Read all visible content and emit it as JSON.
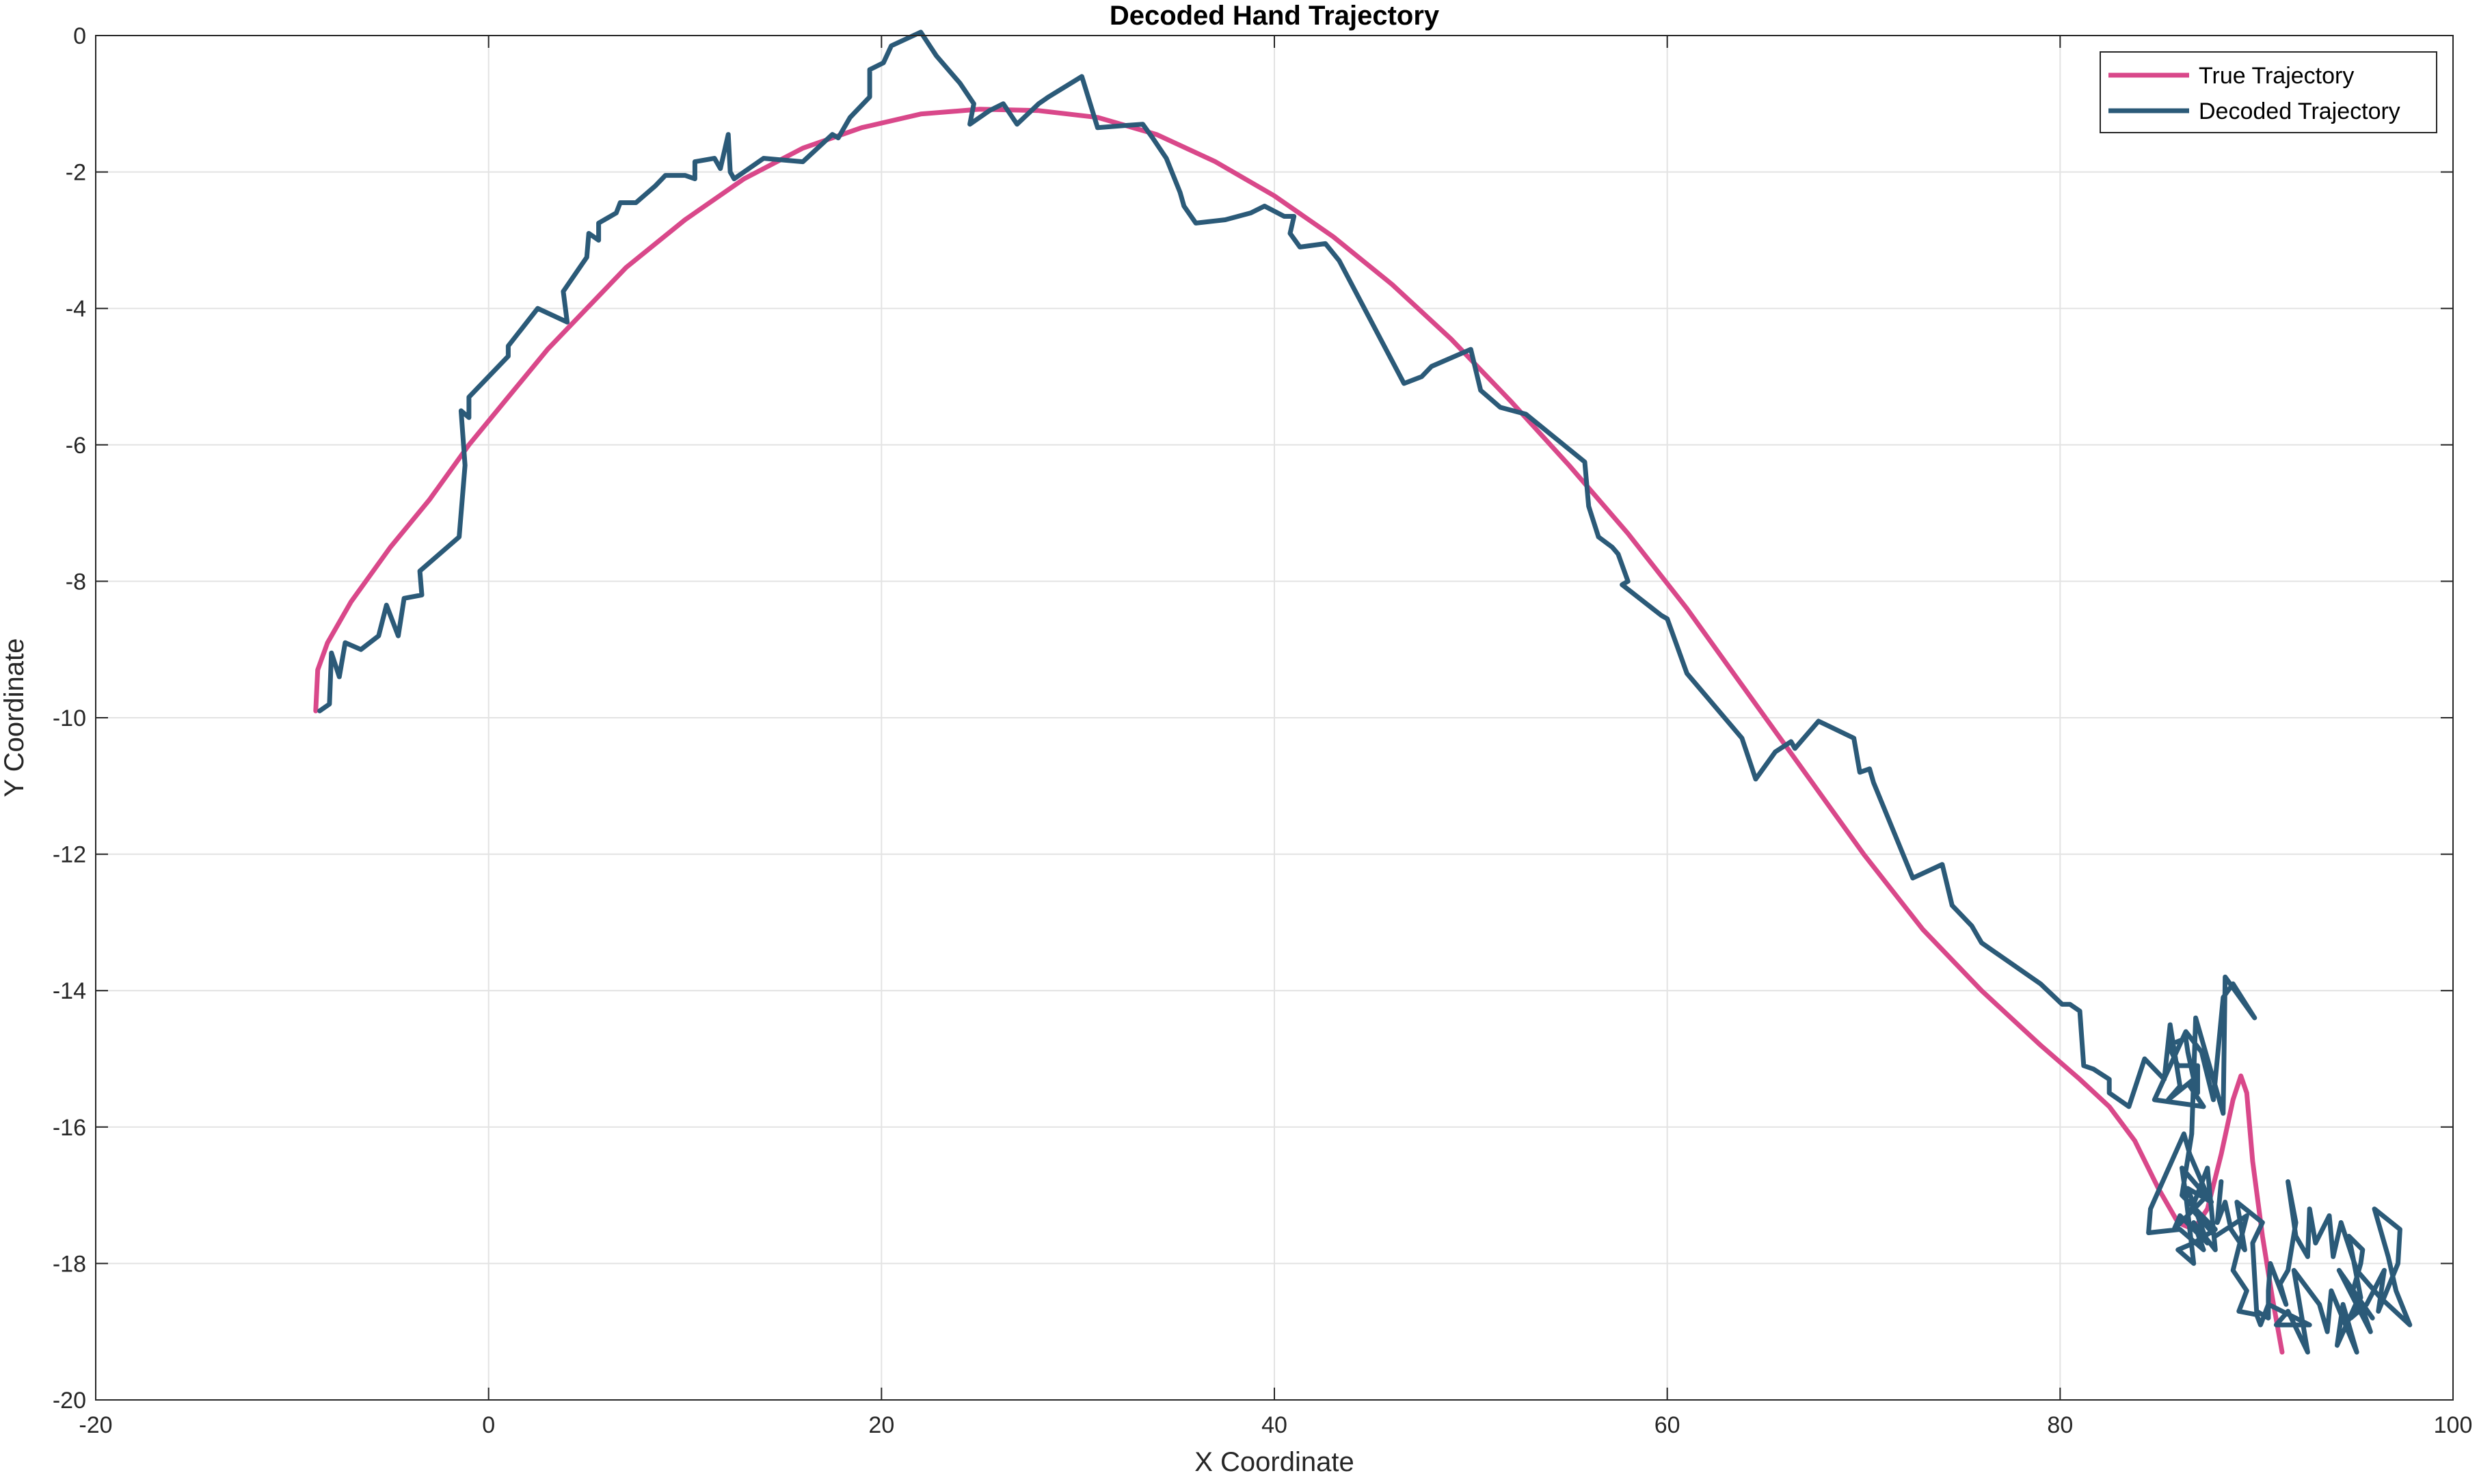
{
  "chart_data": {
    "type": "line",
    "title": "Decoded Hand Trajectory",
    "xlabel": "X Coordinate",
    "ylabel": "Y Coordinate",
    "xlim": [
      -20,
      100
    ],
    "ylim": [
      -20,
      0
    ],
    "xticks": [
      -20,
      0,
      20,
      40,
      60,
      80,
      100
    ],
    "yticks": [
      0,
      -2,
      -4,
      -6,
      -8,
      -10,
      -12,
      -14,
      -16,
      -18,
      -20
    ],
    "grid": true,
    "legend": "top-right",
    "series": [
      {
        "name": "True Trajectory",
        "color": "#d9488a",
        "points": [
          [
            -8.8,
            -9.9
          ],
          [
            -8.7,
            -9.3
          ],
          [
            -8.2,
            -8.9
          ],
          [
            -7.0,
            -8.3
          ],
          [
            -5.0,
            -7.5
          ],
          [
            -3.0,
            -6.8
          ],
          [
            -1.0,
            -6.0
          ],
          [
            1.0,
            -5.3
          ],
          [
            3.0,
            -4.6
          ],
          [
            5.0,
            -4.0
          ],
          [
            7.0,
            -3.4
          ],
          [
            10.0,
            -2.7
          ],
          [
            13.0,
            -2.1
          ],
          [
            16.0,
            -1.65
          ],
          [
            19.0,
            -1.35
          ],
          [
            22.0,
            -1.15
          ],
          [
            25.0,
            -1.08
          ],
          [
            28.0,
            -1.1
          ],
          [
            31.0,
            -1.2
          ],
          [
            34.0,
            -1.45
          ],
          [
            37.0,
            -1.85
          ],
          [
            40.0,
            -2.35
          ],
          [
            43.0,
            -2.95
          ],
          [
            46.0,
            -3.65
          ],
          [
            49.0,
            -4.45
          ],
          [
            52.0,
            -5.35
          ],
          [
            55.0,
            -6.3
          ],
          [
            58.0,
            -7.3
          ],
          [
            61.0,
            -8.4
          ],
          [
            64.0,
            -9.6
          ],
          [
            67.0,
            -10.8
          ],
          [
            70.0,
            -12.0
          ],
          [
            73.0,
            -13.1
          ],
          [
            76.0,
            -14.0
          ],
          [
            79.0,
            -14.8
          ],
          [
            81.0,
            -15.3
          ],
          [
            82.5,
            -15.7
          ],
          [
            83.8,
            -16.2
          ],
          [
            85.0,
            -16.9
          ],
          [
            86.0,
            -17.4
          ],
          [
            86.8,
            -17.5
          ],
          [
            87.5,
            -17.2
          ],
          [
            88.2,
            -16.4
          ],
          [
            88.8,
            -15.6
          ],
          [
            89.2,
            -15.25
          ],
          [
            89.5,
            -15.5
          ],
          [
            89.8,
            -16.5
          ],
          [
            90.3,
            -17.6
          ],
          [
            90.8,
            -18.5
          ],
          [
            91.3,
            -19.3
          ]
        ]
      },
      {
        "name": "Decoded Trajectory",
        "color": "#2b5a78",
        "points": [
          [
            -8.6,
            -9.9
          ],
          [
            -8.1,
            -9.8
          ],
          [
            -8.0,
            -9.05
          ],
          [
            -7.6,
            -9.4
          ],
          [
            -7.3,
            -8.9
          ],
          [
            -6.5,
            -9.0
          ],
          [
            -5.6,
            -8.8
          ],
          [
            -5.2,
            -8.35
          ],
          [
            -4.6,
            -8.8
          ],
          [
            -4.3,
            -8.25
          ],
          [
            -3.4,
            -8.2
          ],
          [
            -3.5,
            -7.85
          ],
          [
            -1.5,
            -7.35
          ],
          [
            -1.2,
            -6.3
          ],
          [
            -1.4,
            -5.5
          ],
          [
            -1.0,
            -5.6
          ],
          [
            -1.0,
            -5.3
          ],
          [
            1.0,
            -4.7
          ],
          [
            1.0,
            -4.55
          ],
          [
            2.5,
            -4.0
          ],
          [
            4.0,
            -4.2
          ],
          [
            3.8,
            -3.75
          ],
          [
            5.0,
            -3.25
          ],
          [
            5.1,
            -2.9
          ],
          [
            5.6,
            -3.0
          ],
          [
            5.6,
            -2.75
          ],
          [
            6.5,
            -2.6
          ],
          [
            6.7,
            -2.45
          ],
          [
            7.5,
            -2.45
          ],
          [
            8.5,
            -2.2
          ],
          [
            9.0,
            -2.05
          ],
          [
            10.0,
            -2.05
          ],
          [
            10.5,
            -2.1
          ],
          [
            10.5,
            -1.85
          ],
          [
            11.5,
            -1.8
          ],
          [
            11.8,
            -1.95
          ],
          [
            12.2,
            -1.45
          ],
          [
            12.3,
            -2.0
          ],
          [
            12.5,
            -2.1
          ],
          [
            14.0,
            -1.8
          ],
          [
            16.0,
            -1.85
          ],
          [
            17.5,
            -1.45
          ],
          [
            17.8,
            -1.5
          ],
          [
            18.4,
            -1.2
          ],
          [
            19.4,
            -0.9
          ],
          [
            19.4,
            -0.5
          ],
          [
            20.1,
            -0.4
          ],
          [
            20.5,
            -0.15
          ],
          [
            22.0,
            0.05
          ],
          [
            22.8,
            -0.3
          ],
          [
            24.0,
            -0.7
          ],
          [
            24.7,
            -1.0
          ],
          [
            24.5,
            -1.3
          ],
          [
            25.5,
            -1.1
          ],
          [
            26.2,
            -1.0
          ],
          [
            26.9,
            -1.3
          ],
          [
            28.0,
            -1.0
          ],
          [
            28.5,
            -0.9
          ],
          [
            30.2,
            -0.6
          ],
          [
            31.0,
            -1.35
          ],
          [
            33.3,
            -1.3
          ],
          [
            33.8,
            -1.5
          ],
          [
            34.5,
            -1.8
          ],
          [
            35.2,
            -2.3
          ],
          [
            35.4,
            -2.5
          ],
          [
            36.0,
            -2.75
          ],
          [
            37.5,
            -2.7
          ],
          [
            38.8,
            -2.6
          ],
          [
            39.5,
            -2.5
          ],
          [
            40.5,
            -2.65
          ],
          [
            41.0,
            -2.65
          ],
          [
            40.8,
            -2.9
          ],
          [
            41.3,
            -3.1
          ],
          [
            42.6,
            -3.05
          ],
          [
            43.3,
            -3.3
          ],
          [
            46.6,
            -5.1
          ],
          [
            47.5,
            -5.0
          ],
          [
            48.0,
            -4.85
          ],
          [
            50.0,
            -4.6
          ],
          [
            50.5,
            -5.2
          ],
          [
            51.5,
            -5.45
          ],
          [
            52.8,
            -5.55
          ],
          [
            55.8,
            -6.25
          ],
          [
            56.0,
            -6.9
          ],
          [
            56.5,
            -7.35
          ],
          [
            57.2,
            -7.5
          ],
          [
            57.5,
            -7.6
          ],
          [
            58.0,
            -8.0
          ],
          [
            57.7,
            -8.05
          ],
          [
            59.7,
            -8.5
          ],
          [
            60.0,
            -8.55
          ],
          [
            61.0,
            -9.35
          ],
          [
            63.8,
            -10.3
          ],
          [
            64.5,
            -10.9
          ],
          [
            65.5,
            -10.5
          ],
          [
            66.3,
            -10.35
          ],
          [
            66.5,
            -10.45
          ],
          [
            67.7,
            -10.05
          ],
          [
            69.5,
            -10.3
          ],
          [
            69.8,
            -10.8
          ],
          [
            70.3,
            -10.75
          ],
          [
            70.5,
            -10.95
          ],
          [
            72.5,
            -12.35
          ],
          [
            74.0,
            -12.15
          ],
          [
            74.5,
            -12.75
          ],
          [
            75.5,
            -13.05
          ],
          [
            76.0,
            -13.3
          ],
          [
            77.5,
            -13.6
          ],
          [
            79.0,
            -13.9
          ],
          [
            80.1,
            -14.2
          ],
          [
            80.5,
            -14.2
          ],
          [
            81.0,
            -14.3
          ],
          [
            81.2,
            -15.1
          ],
          [
            81.7,
            -15.15
          ],
          [
            82.5,
            -15.3
          ],
          [
            82.5,
            -15.5
          ],
          [
            83.5,
            -15.7
          ],
          [
            84.3,
            -15.0
          ],
          [
            85.3,
            -15.3
          ],
          [
            85.6,
            -14.5
          ],
          [
            86.1,
            -15.4
          ],
          [
            85.5,
            -15.6
          ],
          [
            86.8,
            -15.3
          ],
          [
            86.5,
            -14.9
          ],
          [
            86.4,
            -14.7
          ],
          [
            85.5,
            -14.8
          ],
          [
            86.0,
            -15.1
          ],
          [
            87.0,
            -15.1
          ],
          [
            87.0,
            -15.5
          ],
          [
            86.6,
            -15.4
          ],
          [
            87.3,
            -15.7
          ],
          [
            84.8,
            -15.6
          ],
          [
            86.4,
            -14.6
          ],
          [
            87.2,
            -14.9
          ],
          [
            87.8,
            -15.6
          ],
          [
            88.3,
            -14.1
          ],
          [
            88.8,
            -13.9
          ],
          [
            89.9,
            -14.4
          ],
          [
            88.4,
            -13.8
          ],
          [
            88.3,
            -15.8
          ],
          [
            86.9,
            -14.4
          ],
          [
            86.7,
            -16.1
          ],
          [
            86.2,
            -17.0
          ],
          [
            87.9,
            -17.5
          ],
          [
            86.8,
            -17.7
          ],
          [
            86.0,
            -17.8
          ],
          [
            86.8,
            -18.0
          ],
          [
            86.4,
            -17.0
          ],
          [
            86.2,
            -16.6
          ],
          [
            87.7,
            -17.1
          ],
          [
            86.5,
            -16.9
          ],
          [
            87.5,
            -17.7
          ],
          [
            86.1,
            -17.3
          ],
          [
            85.8,
            -17.5
          ],
          [
            87.5,
            -17.0
          ],
          [
            86.6,
            -16.4
          ],
          [
            86.3,
            -16.1
          ],
          [
            84.6,
            -17.2
          ],
          [
            84.5,
            -17.55
          ],
          [
            86.1,
            -17.5
          ],
          [
            87.3,
            -17.8
          ],
          [
            86.8,
            -17.4
          ],
          [
            87.9,
            -17.8
          ],
          [
            87.5,
            -16.6
          ],
          [
            86.7,
            -17.2
          ],
          [
            87.9,
            -17.6
          ],
          [
            89.5,
            -17.3
          ],
          [
            88.8,
            -18.1
          ],
          [
            89.5,
            -18.4
          ],
          [
            89.1,
            -18.7
          ],
          [
            90.0,
            -18.75
          ],
          [
            90.2,
            -18.9
          ],
          [
            90.6,
            -18.6
          ],
          [
            92.7,
            -18.9
          ],
          [
            91.0,
            -18.9
          ],
          [
            91.6,
            -18.7
          ],
          [
            92.6,
            -19.3
          ],
          [
            91.9,
            -18.1
          ],
          [
            93.2,
            -18.6
          ],
          [
            93.6,
            -19.0
          ],
          [
            93.8,
            -18.4
          ],
          [
            95.1,
            -19.3
          ],
          [
            94.4,
            -18.6
          ],
          [
            94.1,
            -19.2
          ],
          [
            95.2,
            -18.5
          ],
          [
            95.8,
            -19.0
          ],
          [
            94.2,
            -18.1
          ],
          [
            95.9,
            -18.8
          ],
          [
            94.9,
            -18.4
          ],
          [
            95.3,
            -18.0
          ],
          [
            95.4,
            -17.8
          ],
          [
            94.7,
            -17.6
          ],
          [
            95.3,
            -18.5
          ],
          [
            94.8,
            -18.8
          ],
          [
            95.6,
            -18.6
          ],
          [
            96.5,
            -18.1
          ],
          [
            96.2,
            -18.7
          ],
          [
            97.2,
            -18.0
          ],
          [
            97.3,
            -17.5
          ],
          [
            96.0,
            -17.2
          ],
          [
            96.7,
            -17.9
          ],
          [
            97.1,
            -18.4
          ],
          [
            97.8,
            -18.9
          ],
          [
            96.3,
            -18.5
          ],
          [
            95.1,
            -18.1
          ],
          [
            94.3,
            -17.4
          ],
          [
            93.9,
            -17.9
          ],
          [
            93.7,
            -17.3
          ],
          [
            93.0,
            -17.7
          ],
          [
            92.7,
            -17.2
          ],
          [
            92.6,
            -17.9
          ],
          [
            92.0,
            -17.6
          ],
          [
            91.6,
            -16.8
          ],
          [
            92.0,
            -17.4
          ],
          [
            91.6,
            -18.1
          ],
          [
            91.2,
            -18.3
          ],
          [
            91.5,
            -18.6
          ],
          [
            90.7,
            -18.0
          ],
          [
            90.6,
            -18.4
          ],
          [
            90.6,
            -18.8
          ],
          [
            90.0,
            -18.7
          ],
          [
            89.8,
            -17.7
          ],
          [
            90.3,
            -17.4
          ],
          [
            89.0,
            -17.1
          ],
          [
            89.4,
            -17.8
          ],
          [
            88.7,
            -17.5
          ],
          [
            88.4,
            -17.1
          ],
          [
            88.0,
            -17.4
          ],
          [
            88.2,
            -16.8
          ]
        ]
      }
    ]
  }
}
